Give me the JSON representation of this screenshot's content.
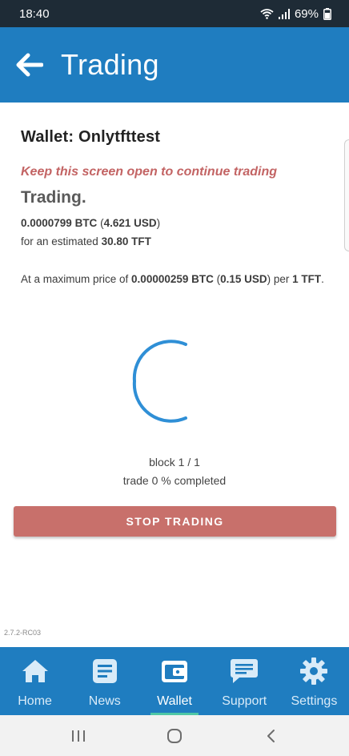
{
  "status_bar": {
    "time": "18:40",
    "battery": "69%",
    "icons": [
      "wifi-icon",
      "signal-icon",
      "battery-icon"
    ]
  },
  "app_bar": {
    "title": "Trading",
    "back_icon": "arrow-left-icon"
  },
  "main": {
    "wallet_title": "Wallet: Onlytfttest",
    "warning": "Keep this screen open to continue trading",
    "heading": "Trading.",
    "amount": {
      "btc": "0.0000799 BTC",
      "open_paren": " (",
      "usd": "4.621 USD",
      "close_paren": ")"
    },
    "estimate": {
      "prefix": "for an estimated ",
      "value": "30.80 TFT"
    },
    "price": {
      "prefix": "At a maximum price of ",
      "btc": "0.00000259 BTC",
      "open_paren": " (",
      "usd": "0.15 USD",
      "middle": ") per ",
      "unit_count": "1 TFT",
      "suffix": "."
    },
    "block_status": "block 1 / 1",
    "trade_progress": "trade 0 % completed",
    "stop_button": "STOP TRADING",
    "version": "2.7.2-RC03"
  },
  "bottom_nav": {
    "items": [
      {
        "label": "Home",
        "icon": "home-icon"
      },
      {
        "label": "News",
        "icon": "news-icon"
      },
      {
        "label": "Wallet",
        "icon": "wallet-icon"
      },
      {
        "label": "Support",
        "icon": "chat-icon"
      },
      {
        "label": "Settings",
        "icon": "gear-icon"
      }
    ],
    "active": "Wallet"
  },
  "system_nav": {
    "icons": [
      "recent-apps-icon",
      "home-circle-icon",
      "back-chevron-icon"
    ]
  },
  "colors": {
    "status_bar": "#1e2b36",
    "primary": "#1f7dc0",
    "warning_text": "#c36464",
    "stop_button": "#c8706b",
    "spinner": "#2f8fd6",
    "active_indicator": "#4ec7a6"
  }
}
